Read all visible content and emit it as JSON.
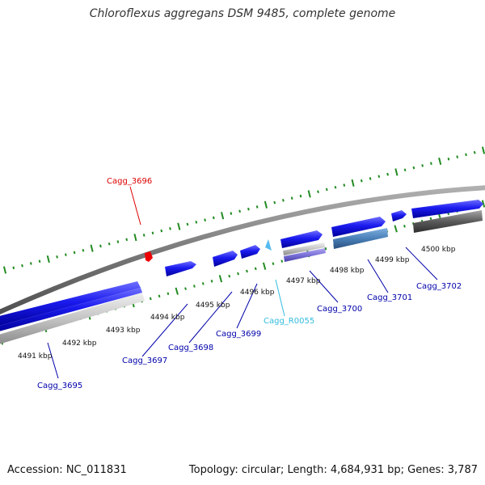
{
  "title": "Chloroflexus aggregans DSM 9485, complete genome",
  "footer": {
    "accession": "Accession: NC_011831",
    "topology": "Topology: circular; Length: 4,684,931 bp; Genes: 3,787"
  },
  "colors": {
    "tick": "#228b22",
    "axis": "#808080",
    "cds": "#0000ee",
    "gene_label": "#0000aa",
    "rna_label": "#33bbdd",
    "rna_gene": "#55bbee",
    "highlight_label": "#dd0000",
    "highlight_gene": "#ee0000"
  },
  "scale_labels": [
    "4491 kbp",
    "4492 kbp",
    "4493 kbp",
    "4494 kbp",
    "4495 kbp",
    "4496 kbp",
    "4497 kbp",
    "4498 kbp",
    "4499 kbp",
    "4500 kbp"
  ],
  "gene_labels": [
    {
      "id": "cagg-3695",
      "text": "Cagg_3695",
      "kind": "cds"
    },
    {
      "id": "cagg-3696",
      "text": "Cagg_3696",
      "kind": "highlight"
    },
    {
      "id": "cagg-3697",
      "text": "Cagg_3697",
      "kind": "cds"
    },
    {
      "id": "cagg-3698",
      "text": "Cagg_3698",
      "kind": "cds"
    },
    {
      "id": "cagg-3699",
      "text": "Cagg_3699",
      "kind": "cds"
    },
    {
      "id": "cagg-r0055",
      "text": "Cagg_R0055",
      "kind": "rna"
    },
    {
      "id": "cagg-3700",
      "text": "Cagg_3700",
      "kind": "cds"
    },
    {
      "id": "cagg-3701",
      "text": "Cagg_3701",
      "kind": "cds"
    },
    {
      "id": "cagg-3702",
      "text": "Cagg_3702",
      "kind": "cds"
    }
  ]
}
